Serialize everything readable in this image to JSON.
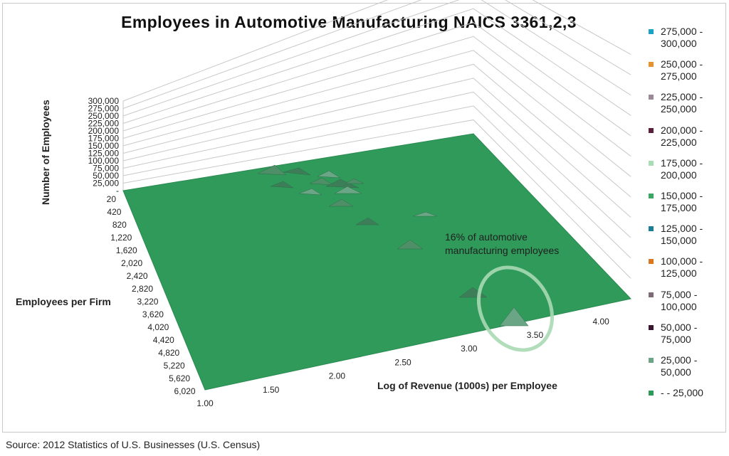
{
  "chart_data": {
    "type": "surface",
    "title": "Employees in Automotive Manufacturing NAICS 3361,2,3",
    "zlabel": "Number of Employees",
    "ylabel": "Employees per Firm",
    "xlabel": "Log of Revenue (1000s) per Employee",
    "z_ticks": [
      "-",
      "25,000",
      "50,000",
      "75,000",
      "100,000",
      "125,000",
      "150,000",
      "175,000",
      "200,000",
      "225,000",
      "250,000",
      "275,000",
      "300,000"
    ],
    "y_ticks": [
      "20",
      "420",
      "820",
      "1,220",
      "1,620",
      "2,020",
      "2,420",
      "2,820",
      "3,220",
      "3,620",
      "4,020",
      "4,420",
      "4,820",
      "5,220",
      "5,620",
      "6,020"
    ],
    "x_ticks": [
      "1.00",
      "1.50",
      "2.00",
      "2.50",
      "3.00",
      "3.50",
      "4.00"
    ],
    "zlim": [
      0,
      300000
    ],
    "grid": true,
    "legend_position": "right",
    "legend": [
      {
        "label": "275,000 - 300,000",
        "color": "#1ba3c6"
      },
      {
        "label": "250,000 - 275,000",
        "color": "#e8922e"
      },
      {
        "label": "225,000 - 250,000",
        "color": "#9b8a96"
      },
      {
        "label": "200,000 - 225,000",
        "color": "#5a1f3c"
      },
      {
        "label": "175,000 - 200,000",
        "color": "#a8dcb4"
      },
      {
        "label": "150,000 - 175,000",
        "color": "#3aa862"
      },
      {
        "label": "125,000 - 150,000",
        "color": "#1a7f94"
      },
      {
        "label": "100,000 - 125,000",
        "color": "#d9761e"
      },
      {
        "label": "75,000 - 100,000",
        "color": "#7d6b78"
      },
      {
        "label": "50,000 - 75,000",
        "color": "#3b1530"
      },
      {
        "label": "25,000 - 50,000",
        "color": "#6aa685"
      },
      {
        "label": "- - 25,000",
        "color": "#2e9a5a"
      }
    ],
    "annotations": [
      "16% of automotive manufacturing employees"
    ]
  },
  "source": "Source: 2012 Statistics of U.S. Businesses (U.S. Census)"
}
